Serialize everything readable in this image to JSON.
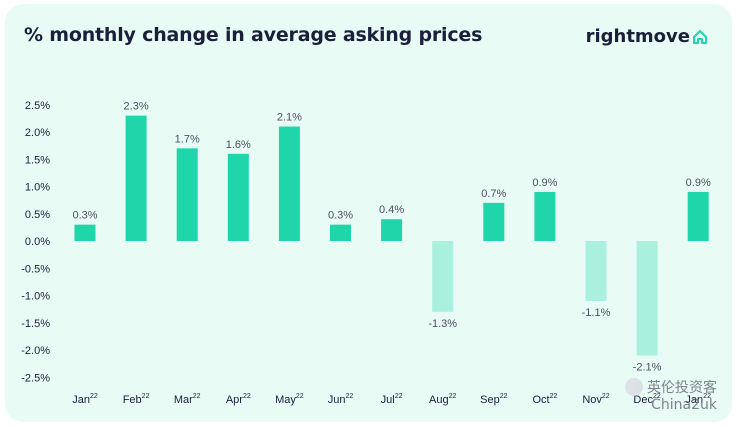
{
  "header": {
    "title": "% monthly change in average asking prices",
    "brand": "rightmove"
  },
  "colors": {
    "positive": "#1ed6aa",
    "negative": "#aaf0df",
    "background": "#e9fbf5",
    "text": "#1b1f3b"
  },
  "watermark": {
    "line1": "英伦投资客",
    "line2": "China2uk"
  },
  "chart_data": {
    "type": "bar",
    "title": "% monthly change in average asking prices",
    "categories": [
      "Jan",
      "Feb",
      "Mar",
      "Apr",
      "May",
      "Jun",
      "Jul",
      "Aug",
      "Sep",
      "Oct",
      "Nov",
      "Dec",
      "Jan"
    ],
    "category_superscript": "22",
    "values": [
      0.3,
      2.3,
      1.7,
      1.6,
      2.1,
      0.3,
      0.4,
      -1.3,
      0.7,
      0.9,
      -1.1,
      -2.1,
      0.9
    ],
    "data_labels": [
      "0.3%",
      "2.3%",
      "1.7%",
      "1.6%",
      "2.1%",
      "0.3%",
      "0.4%",
      "-1.3%",
      "0.7%",
      "0.9%",
      "-1.1%",
      "-2.1%",
      "0.9%"
    ],
    "yticks": [
      2.5,
      2.0,
      1.5,
      1.0,
      0.5,
      0.0,
      -0.5,
      -1.0,
      -1.5,
      -2.0,
      -2.5
    ],
    "ytick_labels": [
      "2.5%",
      "2.0%",
      "1.5%",
      "1.0%",
      "0.5%",
      "0.0%",
      "-0.5%",
      "-1.0%",
      "-1.5%",
      "-2.0%",
      "-2.5%"
    ],
    "ylim": [
      -2.5,
      2.5
    ],
    "grid": false,
    "xlabel": "",
    "ylabel": ""
  }
}
